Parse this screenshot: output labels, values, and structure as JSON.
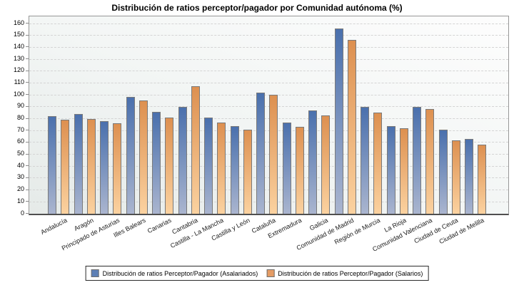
{
  "chart_data": {
    "type": "bar",
    "title": "Distribución de ratios perceptor/pagador por Comunidad autónoma (%)",
    "categories": [
      "Andalucía",
      "Aragón",
      "Principado de Asturias",
      "Illes Balears",
      "Canarias",
      "Cantabria",
      "Castilla - La Mancha",
      "Castilla y León",
      "Cataluña",
      "Extremadura",
      "Galicia",
      "Comunidad de Madrid",
      "Región de Murcia",
      "La Rioja",
      "Comunidad Valenciana",
      "Ciudad de Ceuta",
      "Ciudad de Melilla"
    ],
    "series": [
      {
        "name": "Distribución de ratios Perceptor/Pagador (Asalariados)",
        "values": [
          82,
          84,
          78,
          98,
          86,
          90,
          81,
          74,
          102,
          77,
          87,
          156,
          90,
          74,
          90,
          71,
          63
        ],
        "color_top": "#4a70ad",
        "color_bottom": "#aab5cf",
        "legend_color": "#5c7fb5"
      },
      {
        "name": "Distribución de ratios Perceptor/Pagador (Salarios)",
        "values": [
          79,
          80,
          76,
          95,
          81,
          107,
          77,
          71,
          100,
          73,
          83,
          146,
          85,
          72,
          88,
          62,
          58
        ],
        "color_top": "#dd9050",
        "color_bottom": "#fbd2a0",
        "legend_color": "#e59c64"
      }
    ],
    "ylim": [
      0,
      160
    ],
    "ytick_step": 10,
    "grid": "horizontal-dashed",
    "legend_position": "bottom-center",
    "colors": {
      "grid_line": "#d4d4d4",
      "plot_border": "#979797",
      "axis_line": "#4f4f4f",
      "bar_border": "#7a7a7a",
      "plot_bg_top": "#fdfdfd",
      "plot_bg_bottom": "#e5eae8"
    }
  }
}
